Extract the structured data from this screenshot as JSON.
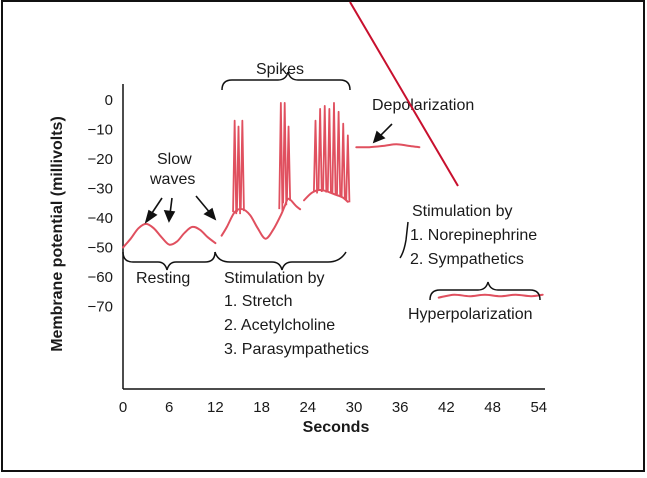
{
  "chart_data": {
    "type": "line",
    "xlabel": "Seconds",
    "ylabel": "Membrane potential (millivolts)",
    "xticks": [
      0,
      6,
      12,
      18,
      24,
      30,
      36,
      42,
      48,
      54
    ],
    "yticks": [
      0,
      -10,
      -20,
      -30,
      -40,
      -50,
      -60,
      -70
    ],
    "xlim": [
      0,
      55
    ],
    "ylim": [
      -92,
      5
    ],
    "grid": false,
    "line_color": "#e0505f",
    "overlay_line_color": "#c8102e",
    "segments": {
      "resting": [
        [
          0,
          -50
        ],
        [
          1,
          -47
        ],
        [
          2,
          -43.5
        ],
        [
          3,
          -42
        ],
        [
          4,
          -43.5
        ],
        [
          5,
          -46.5
        ],
        [
          6,
          -49
        ],
        [
          7,
          -48
        ],
        [
          8,
          -45
        ],
        [
          9,
          -43
        ],
        [
          10,
          -44
        ],
        [
          11,
          -46.5
        ],
        [
          12,
          -48.5
        ]
      ],
      "stimulation": [
        [
          12.8,
          -46
        ],
        [
          13.5,
          -43
        ],
        [
          14.5,
          -38
        ],
        [
          15.5,
          -37
        ],
        [
          16.5,
          -39
        ],
        [
          17.5,
          -43.5
        ],
        [
          18.5,
          -47
        ],
        [
          19.5,
          -44
        ],
        [
          20.5,
          -39
        ],
        [
          21,
          -36
        ],
        [
          21.5,
          -33.5
        ],
        [
          22.5,
          -36
        ],
        [
          23,
          -37
        ]
      ],
      "spike_burst": [
        [
          23.5,
          -34
        ],
        [
          24.5,
          -31.5
        ],
        [
          25.5,
          -30.5
        ],
        [
          26.5,
          -31
        ],
        [
          27.5,
          -32
        ],
        [
          28.5,
          -33
        ],
        [
          29.2,
          -34.5
        ]
      ],
      "depolarization": [
        [
          30.3,
          -16
        ],
        [
          32,
          -16
        ],
        [
          34,
          -15.5
        ],
        [
          35.5,
          -15
        ],
        [
          37,
          -15.5
        ],
        [
          38.5,
          -16
        ]
      ],
      "hyperpolarization": [
        [
          41,
          -67
        ],
        [
          43,
          -66
        ],
        [
          45,
          -66.5
        ],
        [
          47,
          -66
        ],
        [
          49,
          -66.5
        ],
        [
          51,
          -66
        ],
        [
          53,
          -66.5
        ],
        [
          54.5,
          -66
        ]
      ]
    },
    "spikes": [
      [
        14.5,
        -38,
        -7
      ],
      [
        15,
        -38,
        -9
      ],
      [
        15.5,
        -37,
        -7
      ],
      [
        20.5,
        -37,
        -1
      ],
      [
        21,
        -35,
        -1
      ],
      [
        21.5,
        -33.5,
        -9
      ],
      [
        25,
        -31,
        -7
      ],
      [
        25.6,
        -30.5,
        -3
      ],
      [
        26.2,
        -30.7,
        -2
      ],
      [
        26.8,
        -31,
        -3
      ],
      [
        27.4,
        -31.5,
        -1
      ],
      [
        28,
        -32,
        -4
      ],
      [
        28.6,
        -33,
        -8
      ],
      [
        29.2,
        -34,
        -12
      ]
    ],
    "annotations": {
      "spikes": "Spikes",
      "slow_waves_line1": "Slow",
      "slow_waves_line2": "waves",
      "depolarization": "Depolarization",
      "resting": "Resting",
      "stim_left_title": "Stimulation by",
      "stim_left_1": "1. Stretch",
      "stim_left_2": "2. Acetylcholine",
      "stim_left_3": "3. Parasympathetics",
      "stim_right_title": "Stimulation by",
      "stim_right_1": "1. Norepinephrine",
      "stim_right_2": "2. Sympathetics",
      "hyperpolarization": "Hyperpolarization"
    }
  }
}
